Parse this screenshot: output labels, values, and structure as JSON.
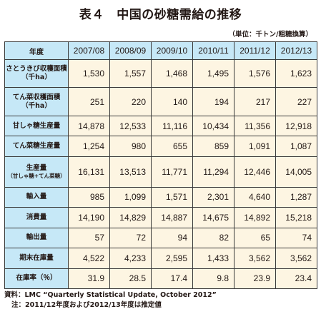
{
  "title": "表４　中国の砂糖需給の推移",
  "unit": "（単位：千トン/粗糖換算）",
  "table": {
    "corner": "年度",
    "years": [
      "2007/08",
      "2008/09",
      "2009/10",
      "2010/11",
      "2011/12",
      "2012/13"
    ],
    "rows": [
      {
        "label": "さとうきび収穫面積",
        "sub": "（千ha）",
        "values": [
          "1,530",
          "1,557",
          "1,468",
          "1,495",
          "1,576",
          "1,623"
        ]
      },
      {
        "label": "てん菜収穫面積",
        "sub": "（千ha）",
        "values": [
          "251",
          "220",
          "140",
          "194",
          "217",
          "227"
        ]
      },
      {
        "label": "甘しゃ糖生産量",
        "sub": "",
        "values": [
          "14,878",
          "12,533",
          "11,116",
          "10,434",
          "11,356",
          "12,918"
        ]
      },
      {
        "label": "てん菜糖生産量",
        "sub": "",
        "values": [
          "1,254",
          "980",
          "655",
          "859",
          "1,091",
          "1,087"
        ]
      },
      {
        "label": "生産量",
        "sub": "（甘しゃ糖+てん菜糖）",
        "values": [
          "16,131",
          "13,513",
          "11,771",
          "11,294",
          "12,446",
          "14,005"
        ]
      },
      {
        "label": "輸入量",
        "sub": "",
        "values": [
          "985",
          "1,099",
          "1,571",
          "2,301",
          "4,640",
          "1,287"
        ]
      },
      {
        "label": "消費量",
        "sub": "",
        "values": [
          "14,190",
          "14,829",
          "14,887",
          "14,675",
          "14,892",
          "15,218"
        ]
      },
      {
        "label": "輸出量",
        "sub": "",
        "values": [
          "57",
          "72",
          "94",
          "82",
          "65",
          "74"
        ]
      },
      {
        "label": "期末在庫量",
        "sub": "",
        "values": [
          "4,522",
          "4,233",
          "2,595",
          "1,433",
          "3,562",
          "3,562"
        ]
      },
      {
        "label": "在庫率（％）",
        "sub": "",
        "values": [
          "31.9",
          "28.5",
          "17.4",
          "9.8",
          "23.9",
          "23.4"
        ]
      }
    ]
  },
  "notes": {
    "source": "資料：LMC “Quarterly Statistical Update, October 2012”",
    "note": "注：2011/12年度および2012/13年度は推定値"
  }
}
